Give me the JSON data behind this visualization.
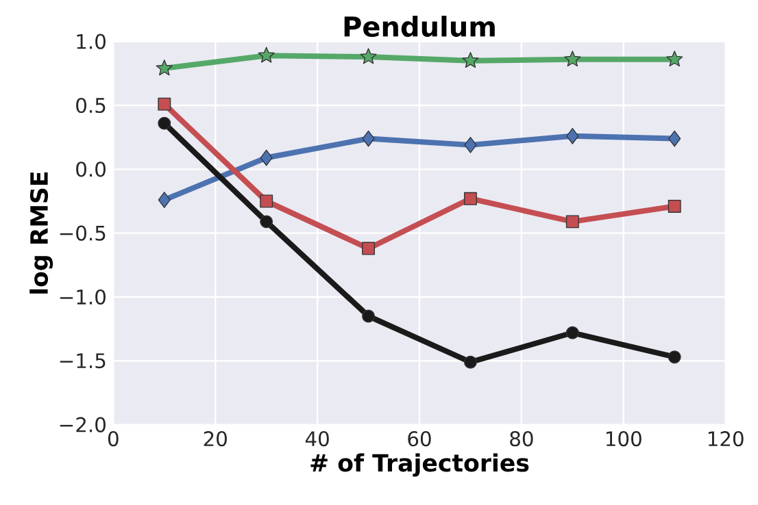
{
  "chart_data": {
    "type": "line",
    "title": "Pendulum",
    "xlabel": "# of Trajectories",
    "ylabel": "log RMSE",
    "x": [
      10,
      30,
      50,
      70,
      90,
      110
    ],
    "series": [
      {
        "color": "#55a868",
        "marker": "star",
        "values": [
          0.79,
          0.89,
          0.88,
          0.85,
          0.86,
          0.86
        ]
      },
      {
        "color": "#4c72b0",
        "marker": "diamond",
        "values": [
          -0.24,
          0.09,
          0.24,
          0.19,
          0.26,
          0.24
        ]
      },
      {
        "color": "#c44e52",
        "marker": "square",
        "values": [
          0.51,
          -0.25,
          -0.62,
          -0.23,
          -0.41,
          -0.29
        ]
      },
      {
        "color": "#1a1a1a",
        "marker": "circle",
        "values": [
          0.36,
          -0.41,
          -1.15,
          -1.51,
          -1.28,
          -1.47
        ]
      }
    ],
    "xlim": [
      0,
      120
    ],
    "ylim": [
      -2.0,
      1.0
    ],
    "xticks": [
      0,
      20,
      40,
      60,
      80,
      100,
      120
    ],
    "yticks": [
      {
        "value": -2.0,
        "label": "−2.0"
      },
      {
        "value": -1.5,
        "label": "−1.5"
      },
      {
        "value": -1.0,
        "label": "−1.0"
      },
      {
        "value": -0.5,
        "label": "−0.5"
      },
      {
        "value": 0.0,
        "label": "0.0"
      },
      {
        "value": 0.5,
        "label": "0.5"
      },
      {
        "value": 1.0,
        "label": "1.0"
      }
    ],
    "grid": true,
    "line_style": "solid"
  }
}
